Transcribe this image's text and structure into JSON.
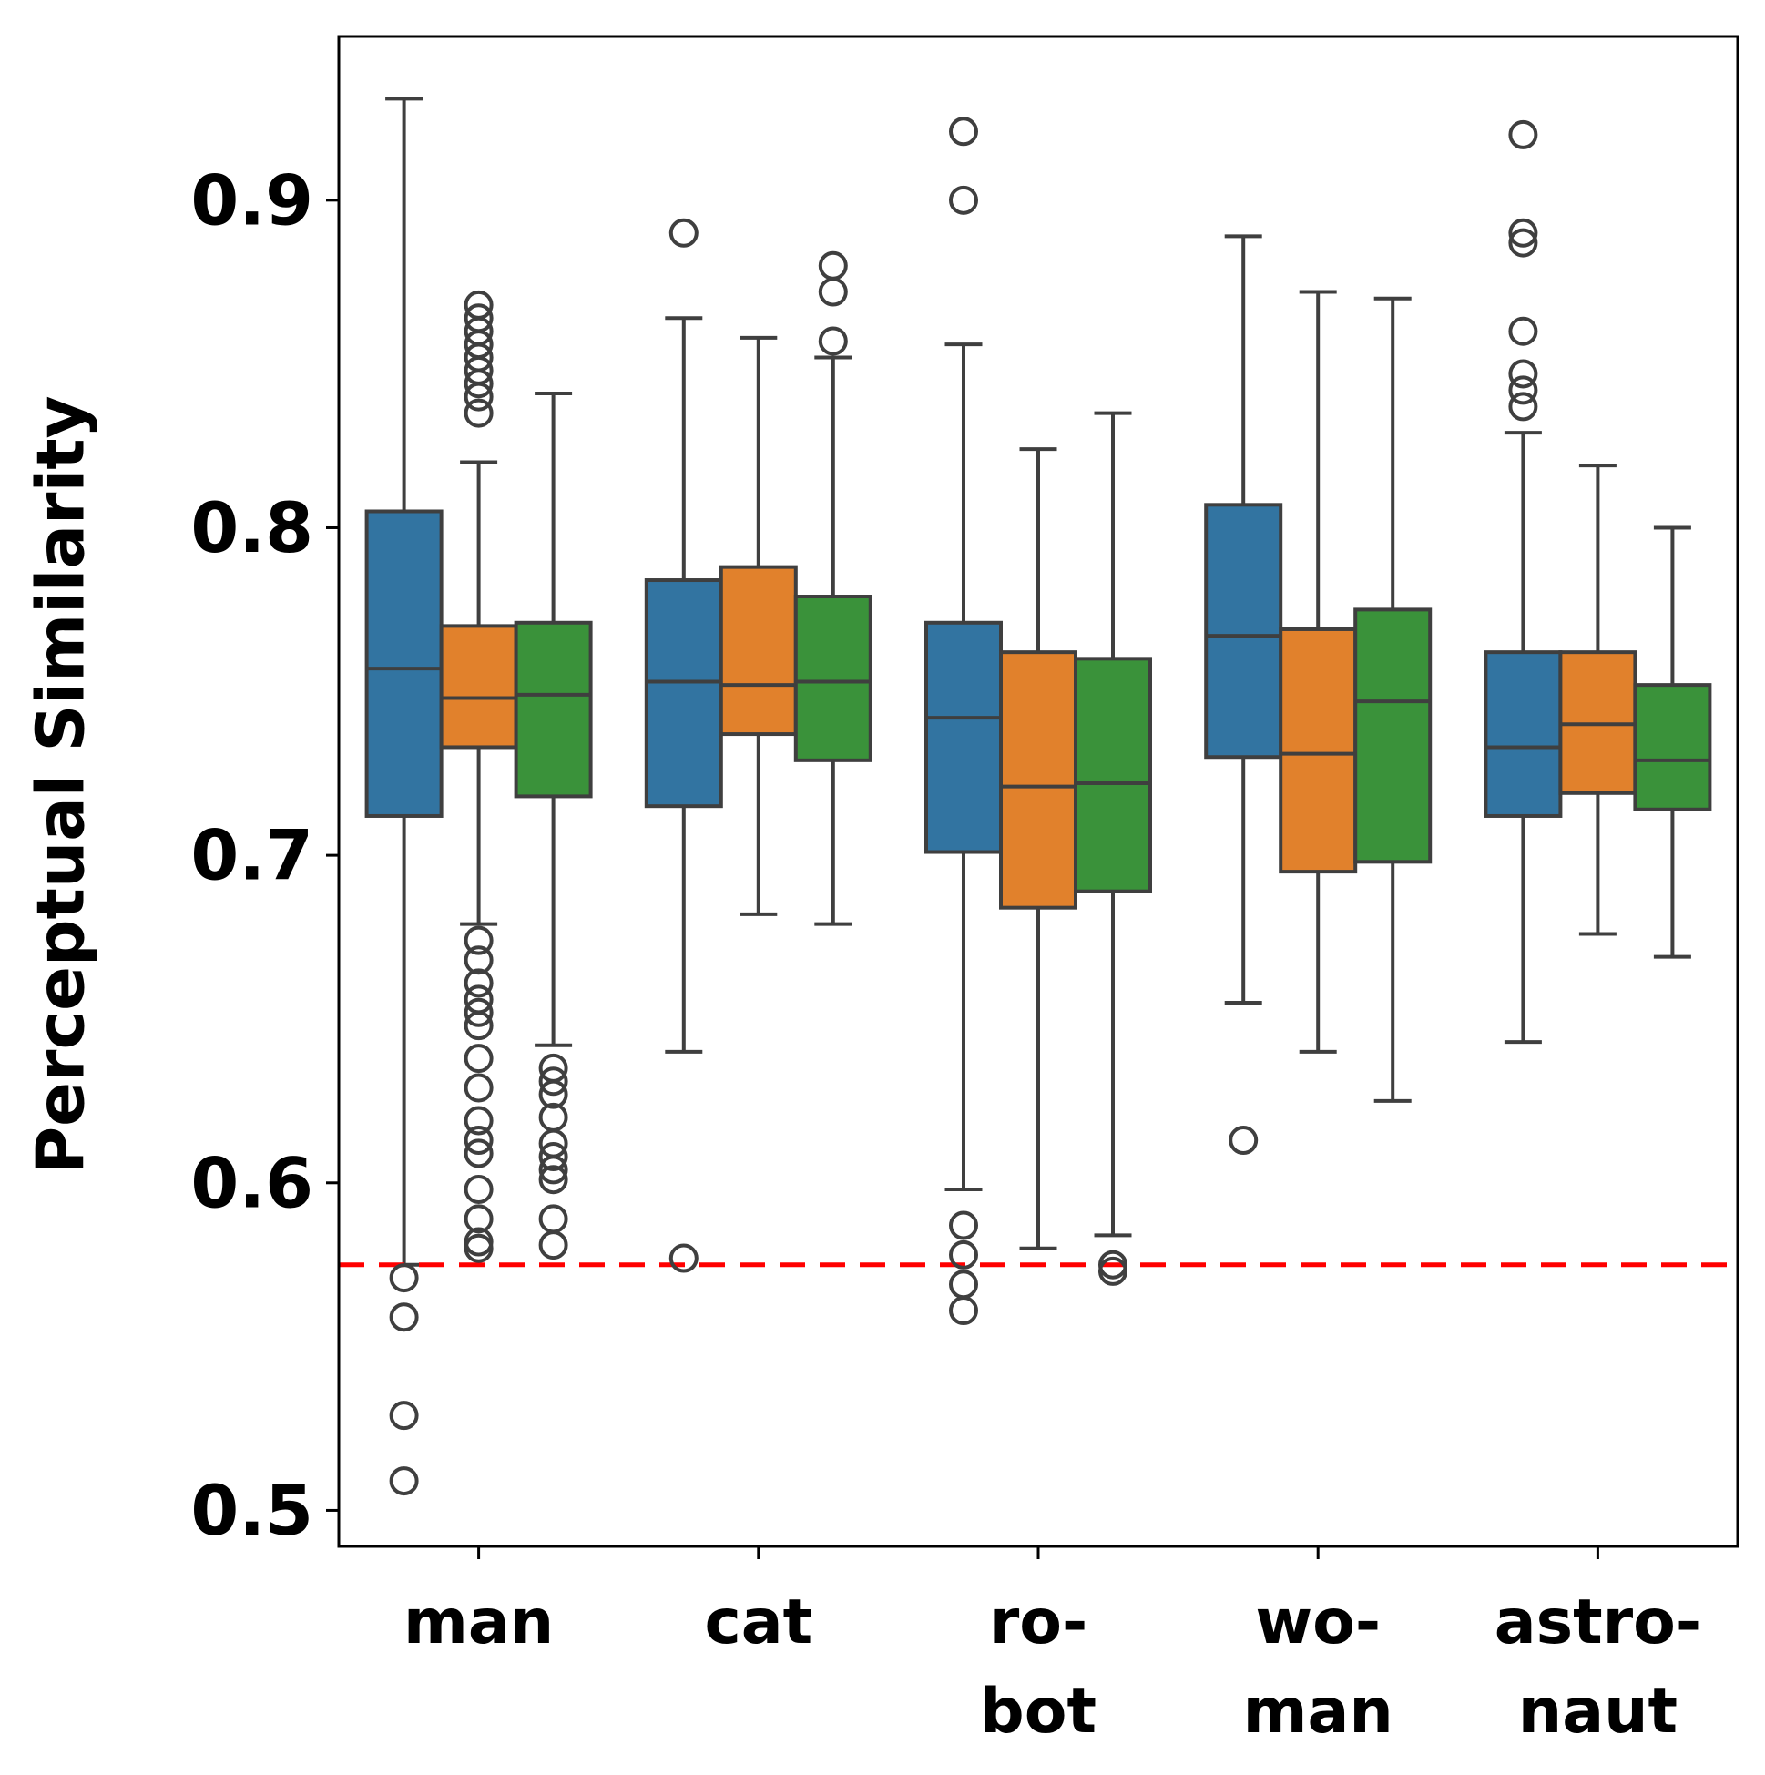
{
  "chart_data": {
    "type": "box",
    "title": "",
    "xlabel": "",
    "ylabel": "Perceptual Similarity",
    "ylim": [
      0.489,
      0.95
    ],
    "yticks": [
      {
        "value": 0.5,
        "label": "0.5"
      },
      {
        "value": 0.6,
        "label": "0.6"
      },
      {
        "value": 0.7,
        "label": "0.7"
      },
      {
        "value": 0.8,
        "label": "0.8"
      },
      {
        "value": 0.9,
        "label": "0.9"
      }
    ],
    "categories": [
      {
        "id": "man",
        "lines": [
          "man"
        ]
      },
      {
        "id": "cat",
        "lines": [
          "cat"
        ]
      },
      {
        "id": "robot",
        "lines": [
          "ro-",
          "bot"
        ]
      },
      {
        "id": "woman",
        "lines": [
          "wo-",
          "man"
        ]
      },
      {
        "id": "astronaut",
        "lines": [
          "astro-",
          "naut"
        ]
      }
    ],
    "series_colors": [
      "#3274a1",
      "#e1812c",
      "#3a923a"
    ],
    "reference_line": {
      "value": 0.575,
      "color": "#ff0000",
      "style": "dashed"
    },
    "boxes": [
      [
        {
          "whislo": 0.575,
          "q1": 0.712,
          "med": 0.757,
          "q3": 0.805,
          "whishi": 0.931,
          "fliers": [
            0.571,
            0.559,
            0.529,
            0.509
          ]
        },
        {
          "whislo": 0.679,
          "q1": 0.733,
          "med": 0.748,
          "q3": 0.77,
          "whishi": 0.82,
          "fliers": [
            0.868,
            0.864,
            0.86,
            0.856,
            0.852,
            0.848,
            0.844,
            0.84,
            0.835,
            0.674,
            0.668,
            0.661,
            0.656,
            0.652,
            0.648,
            0.638,
            0.629,
            0.619,
            0.613,
            0.609,
            0.598,
            0.589,
            0.582,
            0.58
          ]
        },
        {
          "whislo": 0.642,
          "q1": 0.718,
          "med": 0.749,
          "q3": 0.771,
          "whishi": 0.841,
          "fliers": [
            0.635,
            0.631,
            0.627,
            0.62,
            0.612,
            0.608,
            0.604,
            0.601,
            0.589,
            0.581
          ]
        }
      ],
      [
        {
          "whislo": 0.64,
          "q1": 0.715,
          "med": 0.753,
          "q3": 0.784,
          "whishi": 0.864,
          "fliers": [
            0.89,
            0.577
          ]
        },
        {
          "whislo": 0.682,
          "q1": 0.737,
          "med": 0.752,
          "q3": 0.788,
          "whishi": 0.858,
          "fliers": []
        },
        {
          "whislo": 0.679,
          "q1": 0.729,
          "med": 0.753,
          "q3": 0.779,
          "whishi": 0.852,
          "fliers": [
            0.88,
            0.872,
            0.857
          ]
        }
      ],
      [
        {
          "whislo": 0.598,
          "q1": 0.701,
          "med": 0.742,
          "q3": 0.771,
          "whishi": 0.856,
          "fliers": [
            0.921,
            0.9,
            0.587,
            0.578,
            0.569,
            0.561
          ]
        },
        {
          "whislo": 0.58,
          "q1": 0.684,
          "med": 0.721,
          "q3": 0.762,
          "whishi": 0.824,
          "fliers": []
        },
        {
          "whislo": 0.584,
          "q1": 0.689,
          "med": 0.722,
          "q3": 0.76,
          "whishi": 0.835,
          "fliers": [
            0.575,
            0.573
          ]
        }
      ],
      [
        {
          "whislo": 0.655,
          "q1": 0.73,
          "med": 0.767,
          "q3": 0.807,
          "whishi": 0.889,
          "fliers": [
            0.613
          ]
        },
        {
          "whislo": 0.64,
          "q1": 0.695,
          "med": 0.731,
          "q3": 0.769,
          "whishi": 0.872,
          "fliers": []
        },
        {
          "whislo": 0.625,
          "q1": 0.698,
          "med": 0.747,
          "q3": 0.775,
          "whishi": 0.87,
          "fliers": []
        }
      ],
      [
        {
          "whislo": 0.643,
          "q1": 0.712,
          "med": 0.733,
          "q3": 0.762,
          "whishi": 0.829,
          "fliers": [
            0.92,
            0.89,
            0.887,
            0.86,
            0.847,
            0.842,
            0.837
          ]
        },
        {
          "whislo": 0.676,
          "q1": 0.719,
          "med": 0.74,
          "q3": 0.762,
          "whishi": 0.819,
          "fliers": []
        },
        {
          "whislo": 0.669,
          "q1": 0.714,
          "med": 0.729,
          "q3": 0.752,
          "whishi": 0.8,
          "fliers": []
        }
      ]
    ]
  }
}
